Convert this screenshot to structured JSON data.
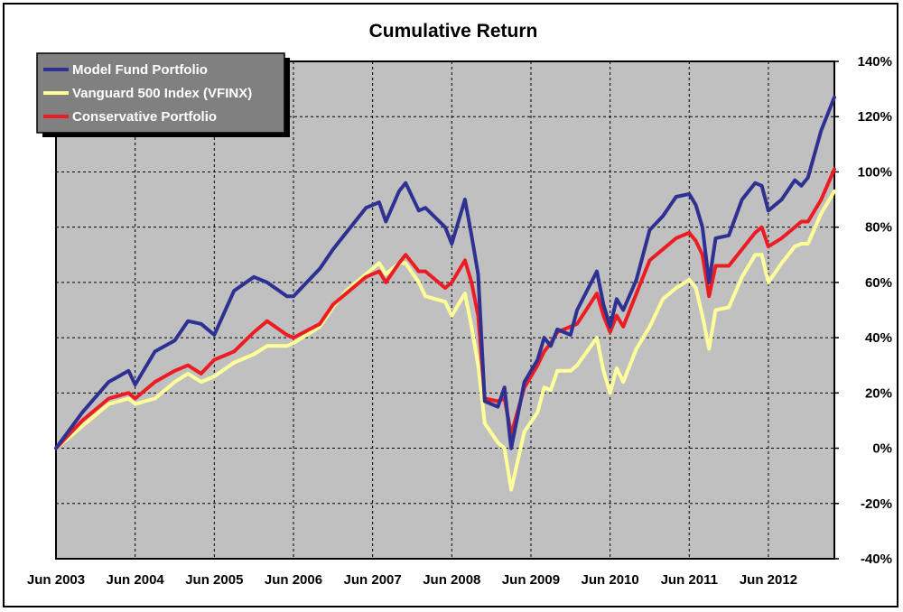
{
  "chart_data": {
    "type": "line",
    "title": "Cumulative Return",
    "xlabel": "",
    "ylabel": "",
    "x_tick_labels": [
      "Jun 2003",
      "Jun 2004",
      "Jun 2005",
      "Jun 2006",
      "Jun 2007",
      "Jun 2008",
      "Jun 2009",
      "Jun 2010",
      "Jun 2011",
      "Jun 2012"
    ],
    "y_tick_labels": [
      "-40%",
      "-20%",
      "0%",
      "20%",
      "40%",
      "60%",
      "80%",
      "100%",
      "120%",
      "140%"
    ],
    "ylim": [
      -40,
      140
    ],
    "y_unit": "%",
    "grid": true,
    "legend_position": "top-left",
    "x_start": "Jun 2003",
    "x_end": "Apr 2013",
    "series": [
      {
        "name": "Model Fund Portfolio",
        "color": "#2E3192",
        "x": [
          "Jun 2003",
          "Oct 2003",
          "Feb 2004",
          "May 2004",
          "Jun 2004",
          "Sep 2004",
          "Dec 2004",
          "Feb 2005",
          "Apr 2005",
          "Jun 2005",
          "Sep 2005",
          "Dec 2005",
          "Feb 2006",
          "May 2006",
          "Jun 2006",
          "Oct 2006",
          "Dec 2006",
          "Feb 2007",
          "May 2007",
          "Jul 2007",
          "Aug 2007",
          "Oct 2007",
          "Nov 2007",
          "Jan 2008",
          "Feb 2008",
          "May 2008",
          "Jun 2008",
          "Aug 2008",
          "Sep 2008",
          "Oct 2008",
          "Nov 2008",
          "Jan 2009",
          "Feb 2009",
          "Mar 2009",
          "May 2009",
          "Jul 2009",
          "Aug 2009",
          "Sep 2009",
          "Oct 2009",
          "Dec 2009",
          "Jan 2010",
          "Apr 2010",
          "May 2010",
          "Jun 2010",
          "Jul 2010",
          "Aug 2010",
          "Oct 2010",
          "Dec 2010",
          "Feb 2011",
          "Apr 2011",
          "Jun 2011",
          "Jul 2011",
          "Aug 2011",
          "Sep 2011",
          "Oct 2011",
          "Dec 2011",
          "Feb 2012",
          "Apr 2012",
          "May 2012",
          "Jun 2012",
          "Aug 2012",
          "Oct 2012",
          "Nov 2012",
          "Dec 2012",
          "Feb 2013",
          "Apr 2013"
        ],
        "values": [
          0,
          13,
          24,
          28,
          23,
          35,
          39,
          46,
          45,
          41,
          57,
          62,
          60,
          55,
          55,
          65,
          72,
          78,
          87,
          89,
          82,
          93,
          96,
          86,
          87,
          80,
          74,
          90,
          77,
          63,
          17,
          15,
          22,
          0,
          24,
          32,
          40,
          37,
          43,
          41,
          50,
          64,
          52,
          44,
          54,
          50,
          61,
          79,
          84,
          91,
          92,
          88,
          80,
          60,
          76,
          77,
          90,
          96,
          95,
          86,
          90,
          97,
          95,
          98,
          115,
          127
        ]
      },
      {
        "name": "Vanguard 500 Index (VFINX)",
        "color": "#FFFF99",
        "x": [
          "Jun 2003",
          "Oct 2003",
          "Feb 2004",
          "May 2004",
          "Jun 2004",
          "Sep 2004",
          "Dec 2004",
          "Feb 2005",
          "Apr 2005",
          "Jun 2005",
          "Sep 2005",
          "Dec 2005",
          "Feb 2006",
          "May 2006",
          "Jun 2006",
          "Oct 2006",
          "Dec 2006",
          "Feb 2007",
          "May 2007",
          "Jul 2007",
          "Aug 2007",
          "Oct 2007",
          "Nov 2007",
          "Jan 2008",
          "Feb 2008",
          "May 2008",
          "Jun 2008",
          "Aug 2008",
          "Sep 2008",
          "Oct 2008",
          "Nov 2008",
          "Jan 2009",
          "Feb 2009",
          "Mar 2009",
          "May 2009",
          "Jul 2009",
          "Aug 2009",
          "Sep 2009",
          "Oct 2009",
          "Dec 2009",
          "Jan 2010",
          "Apr 2010",
          "May 2010",
          "Jun 2010",
          "Jul 2010",
          "Aug 2010",
          "Oct 2010",
          "Dec 2010",
          "Feb 2011",
          "Apr 2011",
          "Jun 2011",
          "Jul 2011",
          "Aug 2011",
          "Sep 2011",
          "Oct 2011",
          "Dec 2011",
          "Feb 2012",
          "Apr 2012",
          "May 2012",
          "Jun 2012",
          "Aug 2012",
          "Oct 2012",
          "Nov 2012",
          "Dec 2012",
          "Feb 2013",
          "Apr 2013"
        ],
        "values": [
          0,
          8,
          16,
          18,
          16,
          18,
          24,
          27,
          24,
          26,
          31,
          34,
          37,
          37,
          38,
          44,
          51,
          57,
          63,
          67,
          63,
          67,
          67,
          60,
          55,
          53,
          48,
          56,
          44,
          30,
          9,
          2,
          0,
          -15,
          6,
          13,
          22,
          21,
          28,
          28,
          30,
          40,
          28,
          20,
          29,
          24,
          36,
          44,
          54,
          58,
          61,
          58,
          48,
          36,
          50,
          51,
          62,
          70,
          70,
          60,
          67,
          73,
          74,
          74,
          85,
          93
        ]
      },
      {
        "name": "Conservative Portfolio",
        "color": "#ED1C24",
        "x": [
          "Jun 2003",
          "Oct 2003",
          "Feb 2004",
          "May 2004",
          "Jun 2004",
          "Sep 2004",
          "Dec 2004",
          "Feb 2005",
          "Apr 2005",
          "Jun 2005",
          "Sep 2005",
          "Dec 2005",
          "Feb 2006",
          "May 2006",
          "Jun 2006",
          "Oct 2006",
          "Dec 2006",
          "Feb 2007",
          "May 2007",
          "Jul 2007",
          "Aug 2007",
          "Oct 2007",
          "Nov 2007",
          "Jan 2008",
          "Feb 2008",
          "May 2008",
          "Jun 2008",
          "Aug 2008",
          "Sep 2008",
          "Oct 2008",
          "Nov 2008",
          "Jan 2009",
          "Feb 2009",
          "Mar 2009",
          "May 2009",
          "Jul 2009",
          "Aug 2009",
          "Sep 2009",
          "Oct 2009",
          "Dec 2009",
          "Jan 2010",
          "Apr 2010",
          "May 2010",
          "Jun 2010",
          "Jul 2010",
          "Aug 2010",
          "Oct 2010",
          "Dec 2010",
          "Feb 2011",
          "Apr 2011",
          "Jun 2011",
          "Jul 2011",
          "Aug 2011",
          "Sep 2011",
          "Oct 2011",
          "Dec 2011",
          "Feb 2012",
          "Apr 2012",
          "May 2012",
          "Jun 2012",
          "Aug 2012",
          "Oct 2012",
          "Nov 2012",
          "Dec 2012",
          "Feb 2013",
          "Apr 2013"
        ],
        "values": [
          0,
          10,
          18,
          20,
          18,
          24,
          28,
          30,
          27,
          32,
          35,
          42,
          46,
          41,
          40,
          45,
          52,
          56,
          62,
          64,
          60,
          67,
          70,
          64,
          64,
          58,
          60,
          68,
          60,
          48,
          18,
          17,
          18,
          5,
          22,
          30,
          35,
          38,
          42,
          44,
          45,
          56,
          48,
          42,
          48,
          44,
          56,
          68,
          72,
          76,
          78,
          75,
          70,
          55,
          66,
          66,
          72,
          78,
          80,
          73,
          76,
          80,
          82,
          82,
          90,
          101
        ]
      }
    ]
  }
}
